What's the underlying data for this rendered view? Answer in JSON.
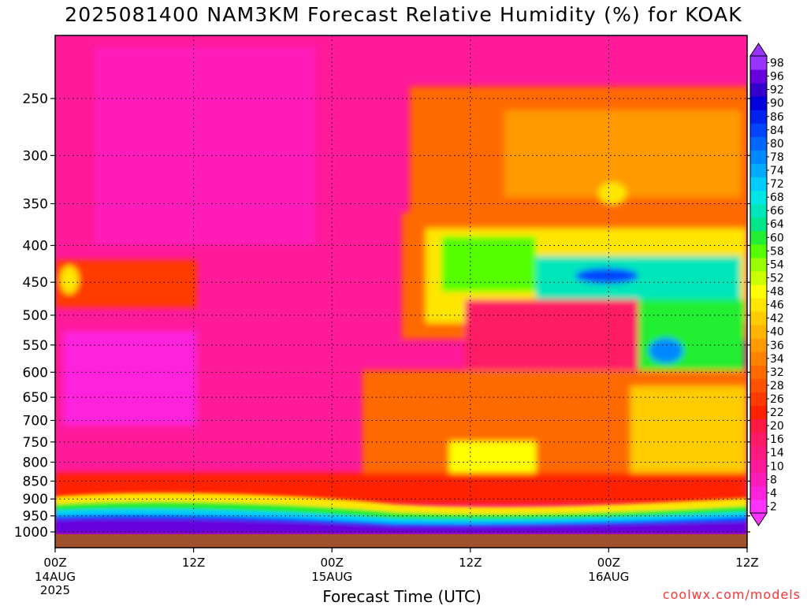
{
  "header": {
    "title": "2025081400 NAM3KM Forecast Relative Humidity (%) for KOAK"
  },
  "footer": {
    "credit": "coolwx.com/models"
  },
  "chart_data": {
    "type": "heatmap",
    "title": "2025081400 NAM3KM Forecast Relative Humidity (%) for KOAK",
    "xlabel": "Forecast Time (UTC)",
    "ylabel": "",
    "x_ticks": [
      {
        "hour": 0,
        "line1": "00Z",
        "line2": "14AUG",
        "line3": "2025"
      },
      {
        "hour": 12,
        "line1": "12Z",
        "line2": "",
        "line3": ""
      },
      {
        "hour": 24,
        "line1": "00Z",
        "line2": "15AUG",
        "line3": ""
      },
      {
        "hour": 36,
        "line1": "12Z",
        "line2": "",
        "line3": ""
      },
      {
        "hour": 48,
        "line1": "00Z",
        "line2": "16AUG",
        "line3": ""
      },
      {
        "hour": 60,
        "line1": "12Z",
        "line2": "",
        "line3": ""
      }
    ],
    "xlim": [
      0,
      60
    ],
    "y_ticks": [
      250,
      300,
      350,
      400,
      450,
      500,
      550,
      600,
      650,
      700,
      750,
      800,
      850,
      900,
      950,
      1000
    ],
    "y_unit": "hPa",
    "ylim_top": 200,
    "grid": "dotted",
    "levels": [
      2,
      4,
      8,
      10,
      14,
      16,
      20,
      22,
      26,
      28,
      32,
      34,
      36,
      40,
      42,
      46,
      48,
      52,
      54,
      58,
      60,
      64,
      66,
      68,
      72,
      74,
      78,
      80,
      84,
      86,
      90,
      92,
      96,
      98
    ],
    "colors": [
      "#ff33ff",
      "#ff22dd",
      "#ff1cbb",
      "#ff1a9a",
      "#ff1a80",
      "#ff1a66",
      "#ff1a44",
      "#ff2200",
      "#ff3a00",
      "#ff5200",
      "#ff6a00",
      "#ff8200",
      "#ff9a00",
      "#ffb400",
      "#ffcc00",
      "#ffe600",
      "#ffff00",
      "#ccff00",
      "#99ff00",
      "#55ff00",
      "#22ee33",
      "#00e68a",
      "#00e6bb",
      "#00e6e6",
      "#00ccff",
      "#00aaff",
      "#0088ff",
      "#0066ff",
      "#0044ff",
      "#0022ee",
      "#0000dd",
      "#3300cc",
      "#6600dd",
      "#9933ff"
    ],
    "surface_color": "#a0522d",
    "colorbar_labels": [
      98,
      96,
      92,
      90,
      86,
      84,
      80,
      78,
      74,
      72,
      68,
      66,
      64,
      60,
      58,
      54,
      52,
      48,
      46,
      42,
      40,
      36,
      34,
      32,
      28,
      26,
      22,
      20,
      16,
      14,
      10,
      8,
      4,
      2
    ],
    "colorbar_extend": "both",
    "year": "2025"
  }
}
